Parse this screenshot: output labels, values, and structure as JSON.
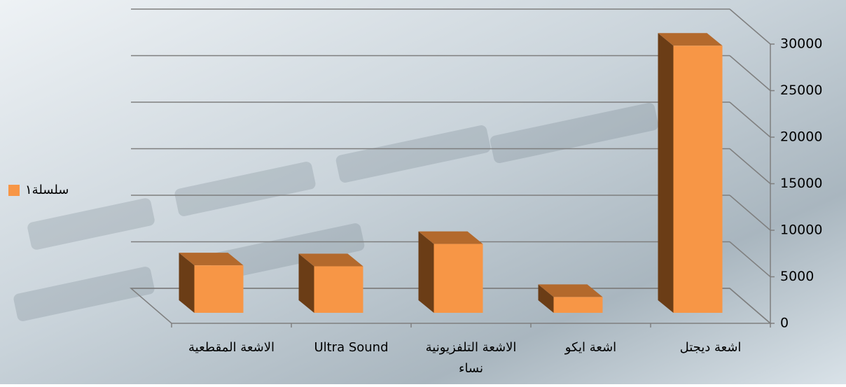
{
  "chart_data": {
    "type": "bar3d",
    "categories": [
      "الاشعة المقطعية",
      "Ultra  Sound",
      "الاشعة التلفزيونية نساء",
      "اشعة ايكو",
      "اشعة ديجتل"
    ],
    "series": [
      {
        "name": "سلسلة١",
        "color": "#f79646",
        "values": [
          5100,
          5000,
          7400,
          1700,
          28700
        ]
      }
    ],
    "ylim": [
      0,
      30000
    ],
    "yticks": [
      0,
      5000,
      10000,
      15000,
      20000,
      25000,
      30000
    ],
    "grid": true,
    "legend": "left",
    "y_axis_side": "right"
  }
}
